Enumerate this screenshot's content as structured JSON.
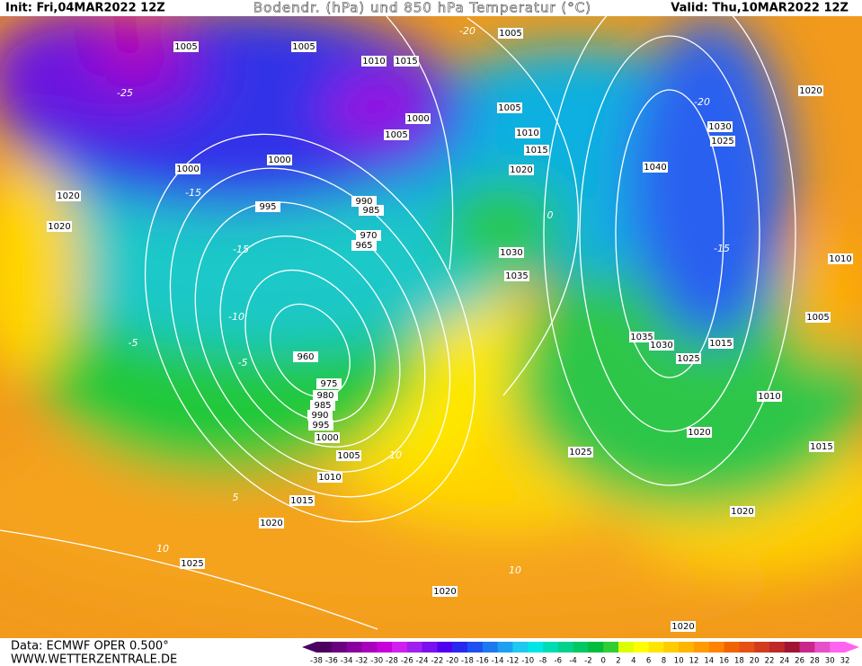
{
  "header": {
    "init": "Init: Fri,04MAR2022 12Z",
    "title": "Bodendr. (hPa) und 850 hPa Temperatur (°C)",
    "valid": "Valid: Thu,10MAR2022 12Z"
  },
  "footer": {
    "data": "Data: ECMWF OPER 0.500°",
    "site": "WWW.WETTERZENTRALE.DE"
  },
  "isobar_labels": [
    1005,
    1005,
    1010,
    1015,
    1005,
    1005,
    1000,
    1005,
    1010,
    1015,
    1020,
    1000,
    1000,
    995,
    990,
    985,
    970,
    965,
    1030,
    1035,
    1020,
    1020,
    1020,
    1030,
    1025,
    1040,
    1010,
    1005,
    1035,
    1030,
    1025,
    1015,
    1010,
    1020,
    1025,
    1015,
    1020,
    960,
    975,
    980,
    985,
    990,
    995,
    1000,
    1005,
    1010,
    1015,
    1020,
    1025,
    1020,
    1020
  ],
  "isotherm_labels": [
    -25,
    -20,
    -15,
    -15,
    -10,
    -5,
    -5,
    5,
    10,
    10,
    10,
    -15,
    -20,
    0
  ],
  "color_scale": {
    "labels": [
      -38,
      -36,
      -34,
      -32,
      -30,
      -28,
      -26,
      -24,
      -22,
      -20,
      -18,
      -16,
      -14,
      -12,
      -10,
      -8,
      -6,
      -4,
      -2,
      0,
      2,
      4,
      6,
      8,
      10,
      12,
      14,
      16,
      18,
      20,
      22,
      24,
      26,
      28,
      30,
      32
    ],
    "colors": [
      "#4b0060",
      "#6a007f",
      "#8a009e",
      "#a800bd",
      "#c700dc",
      "#d020f0",
      "#a020f0",
      "#7a10f0",
      "#5000f0",
      "#2828f0",
      "#1e50f0",
      "#1e78f0",
      "#1ea0f0",
      "#1ec8f0",
      "#00e6e6",
      "#00dcb4",
      "#00d28c",
      "#00c864",
      "#00be3c",
      "#32cd32",
      "#dcff00",
      "#ffff00",
      "#ffe600",
      "#ffcc00",
      "#ffb400",
      "#ff9b00",
      "#ff8200",
      "#f06400",
      "#e65014",
      "#d23c1e",
      "#be2828",
      "#a01432",
      "#c8288c",
      "#e650c8",
      "#ff64f0"
    ]
  }
}
